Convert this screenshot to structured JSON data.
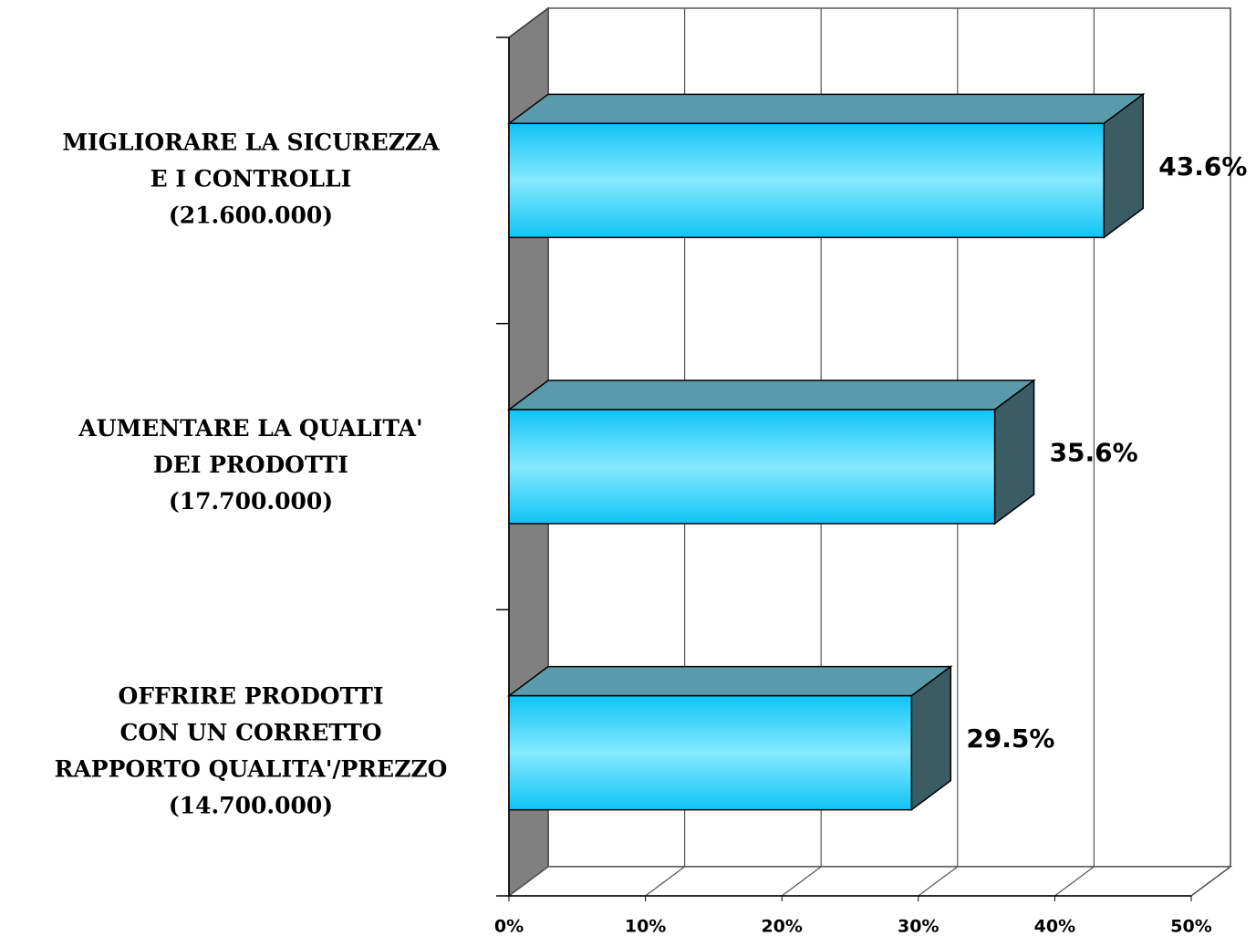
{
  "chart_data": {
    "type": "bar3d_horizontal",
    "categories": [
      [
        "MIGLIORARE LA SICUREZZA",
        "E I CONTROLLI",
        "(21.600.000)"
      ],
      [
        "AUMENTARE LA QUALITA'",
        "DEI PRODOTTI",
        "(17.700.000)"
      ],
      [
        "OFFRIRE PRODOTTI",
        "CON UN CORRETTO",
        "RAPPORTO QUALITA'/PREZZO",
        "(14.700.000)"
      ]
    ],
    "values": [
      43.6,
      35.6,
      29.5
    ],
    "value_labels": [
      "43.6%",
      "35.6%",
      "29.5%"
    ],
    "color": "#1ac8f8",
    "xlim": [
      0,
      50
    ],
    "xticks": [
      {
        "value": 0,
        "label": "0%"
      },
      {
        "value": 10,
        "label": "10%"
      },
      {
        "value": 20,
        "label": "20%"
      },
      {
        "value": 30,
        "label": "30%"
      },
      {
        "value": 40,
        "label": "40%"
      },
      {
        "value": 50,
        "label": "50%"
      }
    ],
    "grid": true
  }
}
